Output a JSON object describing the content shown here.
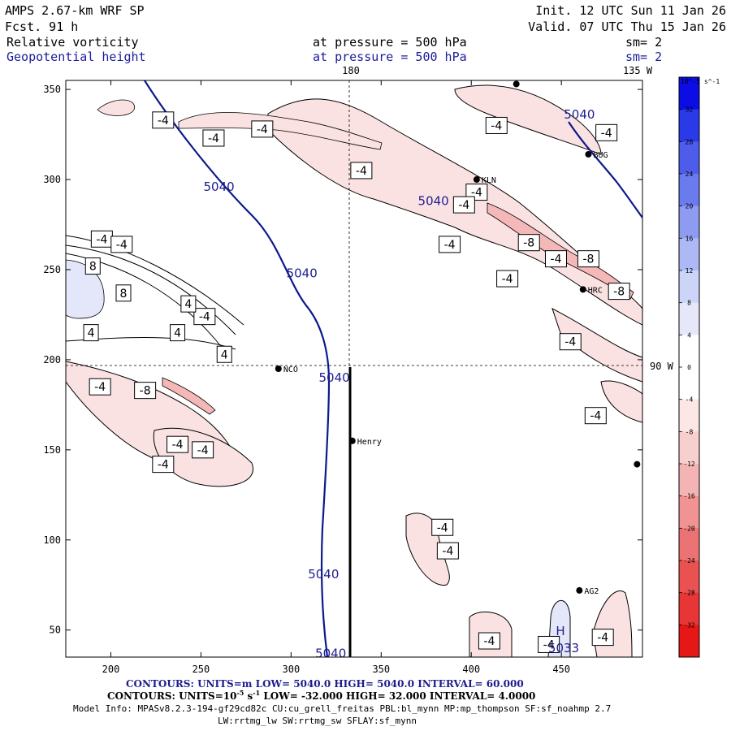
{
  "header": {
    "title_left": "AMPS 2.67-km WRF SP",
    "fcst": "Fcst.   91 h",
    "init": "Init. 12 UTC Sun 11 Jan 26",
    "valid": "Valid. 07 UTC Thu 15 Jan 26",
    "field1_name": "Relative vorticity",
    "field1_level": "at pressure =  500 hPa",
    "field1_sm": "sm= 2",
    "field2_name": "Geopotential height",
    "field2_level": "at pressure =  500 hPa",
    "field2_sm": "sm= 2"
  },
  "map_labels": {
    "lon_180": "180",
    "lon_135w": "135 W",
    "lon_90w": "90 W"
  },
  "colors": {
    "height_contour": "#0c1a8c",
    "neg_fill_light": "#fbe4e4",
    "neg_fill_mid": "#f4b8b8",
    "pos_fill_light": "#e6e8fa",
    "cross_section": "#000000"
  },
  "stations": [
    {
      "name": "NCO",
      "x": 293,
      "y": 195
    },
    {
      "name": "Henry",
      "x": 334,
      "y": 155
    },
    {
      "name": "KLN",
      "x": 403,
      "y": 300
    },
    {
      "name": "BUG",
      "x": 465,
      "y": 314
    },
    {
      "name": "HRC",
      "x": 462,
      "y": 239
    },
    {
      "name": "AG2",
      "x": 460,
      "y": 72
    },
    {
      "name": "",
      "x": 425,
      "y": 353
    },
    {
      "name": "",
      "x": 492,
      "y": 142
    }
  ],
  "contour_labels_height": [
    {
      "text": "5040",
      "x": 260,
      "y": 296
    },
    {
      "text": "5040",
      "x": 306,
      "y": 248
    },
    {
      "text": "5040",
      "x": 324,
      "y": 190
    },
    {
      "text": "5040",
      "x": 318,
      "y": 81
    },
    {
      "text": "5040",
      "x": 322,
      "y": 37
    },
    {
      "text": "5040",
      "x": 460,
      "y": 336
    },
    {
      "text": "5040",
      "x": 379,
      "y": 288
    }
  ],
  "contour_labels_vorticity": [
    {
      "text": "-4",
      "x": 229,
      "y": 333
    },
    {
      "text": "-4",
      "x": 257,
      "y": 323
    },
    {
      "text": "-4",
      "x": 284,
      "y": 328
    },
    {
      "text": "-4",
      "x": 339,
      "y": 305
    },
    {
      "text": "-4",
      "x": 414,
      "y": 330
    },
    {
      "text": "-4",
      "x": 403,
      "y": 293
    },
    {
      "text": "-4",
      "x": 396,
      "y": 286
    },
    {
      "text": "-4",
      "x": 388,
      "y": 264
    },
    {
      "text": "-4",
      "x": 420,
      "y": 245
    },
    {
      "text": "-4",
      "x": 447,
      "y": 256
    },
    {
      "text": "-4",
      "x": 475,
      "y": 326
    },
    {
      "text": "-4",
      "x": 455,
      "y": 210
    },
    {
      "text": "-4",
      "x": 469,
      "y": 169
    },
    {
      "text": "-4",
      "x": 195,
      "y": 267
    },
    {
      "text": "-4",
      "x": 206,
      "y": 264
    },
    {
      "text": "-4",
      "x": 252,
      "y": 224
    },
    {
      "text": "-4",
      "x": 194,
      "y": 185
    },
    {
      "text": "-4",
      "x": 237,
      "y": 153
    },
    {
      "text": "-4",
      "x": 251,
      "y": 150
    },
    {
      "text": "-4",
      "x": 229,
      "y": 142
    },
    {
      "text": "-4",
      "x": 384,
      "y": 107
    },
    {
      "text": "-4",
      "x": 387,
      "y": 94
    },
    {
      "text": "-4",
      "x": 410,
      "y": 44
    },
    {
      "text": "-4",
      "x": 473,
      "y": 46
    },
    {
      "text": "-4",
      "x": 443,
      "y": 42
    },
    {
      "text": "-8",
      "x": 432,
      "y": 265
    },
    {
      "text": "-8",
      "x": 465,
      "y": 256
    },
    {
      "text": "-8",
      "x": 482,
      "y": 238
    },
    {
      "text": "-8",
      "x": 219,
      "y": 183
    },
    {
      "text": "8",
      "x": 190,
      "y": 252
    },
    {
      "text": "8",
      "x": 207,
      "y": 237
    },
    {
      "text": "4",
      "x": 243,
      "y": 231
    },
    {
      "text": "4",
      "x": 237,
      "y": 215
    },
    {
      "text": "4",
      "x": 189,
      "y": 215
    },
    {
      "text": "4",
      "x": 263,
      "y": 203
    }
  ],
  "high_marker": {
    "letter": "H",
    "value": "5033"
  },
  "chart_data": {
    "type": "contour",
    "title": "Relative vorticity / Geopotential height at 500 hPa",
    "xlim": [
      175,
      495
    ],
    "ylim": [
      35,
      355
    ],
    "xticks": [
      200,
      250,
      300,
      350,
      400,
      450
    ],
    "yticks": [
      50,
      100,
      150,
      200,
      250,
      300,
      350
    ],
    "cross_section": {
      "x": [
        334,
        334
      ],
      "y": [
        35,
        195
      ]
    },
    "colorbar": {
      "unit": "10^-5 s^-1",
      "levels": [
        36,
        32,
        28,
        24,
        20,
        16,
        12,
        8,
        4,
        0,
        -4,
        -8,
        -12,
        -16,
        -20,
        -24,
        -28,
        -32,
        -36
      ],
      "tick_labels": [
        "32",
        "28",
        "24",
        "20",
        "16",
        "12",
        "8",
        "4",
        "0",
        "-4",
        "-8",
        "-12",
        "-16",
        "-20",
        "-24",
        "-28",
        "-32"
      ],
      "colors": [
        "#0c0ce6",
        "#2a3ae8",
        "#4d5ceb",
        "#6a7bee",
        "#8d9bf1",
        "#adb9f4",
        "#ccd5f7",
        "#e6e8fa",
        "#ffffff",
        "#ffffff",
        "#fce6e6",
        "#f8cfcf",
        "#f4b4b4",
        "#f19393",
        "#ec7373",
        "#ea5252",
        "#e83535",
        "#e61717"
      ]
    }
  },
  "footer": {
    "line1_prefix": "CONTOURS:  UNITS=m  LOW=  5040.0          HIGH=  5040.0        INTERVAL=   60.000",
    "line2_prefix": "CONTOURS:  UNITS=10",
    "line2_sup": "-5",
    "line2_suffix": " s",
    "line2_sup2": "-1",
    "line2_rest": "  LOW= -32.000          HIGH=  32.000        INTERVAL=   4.0000",
    "line3": "Model Info: MPASv8.2.3-194-gf29cd82c CU:cu_grell_freitas PBL:bl_mynn MP:mp_thompson SF:sf_noahmp 2.7",
    "line4": "LW:rrtmg_lw SW:rrtmg_sw SFLAY:sf_mynn"
  }
}
